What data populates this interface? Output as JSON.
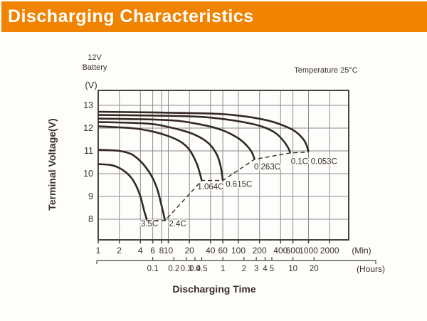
{
  "header": {
    "title": "Discharging Characteristics",
    "bg_color": "#F08300",
    "text_color": "#FFFFFF"
  },
  "chart_notes": {
    "battery_line1": "12V",
    "battery_line2": "Battery",
    "y_unit": "(V)",
    "temperature": "Temperature 25°C"
  },
  "chart_data": {
    "type": "line",
    "title": "Discharging Characteristics",
    "annotation": "Temperature 25°C",
    "x_axis": {
      "label": "Discharging Time",
      "scale": "log",
      "unit_minutes": "(Min)",
      "unit_hours": "(Hours)",
      "minute_ticks": [
        1,
        2,
        4,
        6,
        8,
        10,
        20,
        40,
        60,
        100,
        200,
        400,
        600,
        1000,
        2000
      ],
      "hour_ticks": [
        0.1,
        0.2,
        0.3,
        0.4,
        0.5,
        1,
        2,
        3,
        4,
        5,
        10,
        20
      ],
      "range_minutes": [
        1,
        4000
      ],
      "grid": true
    },
    "y_axis": {
      "label": "Terminal Voltage(V)",
      "ticks": [
        8,
        9,
        10,
        11,
        12,
        13
      ],
      "range": [
        7.1,
        13.65
      ],
      "grid": true
    },
    "series": [
      {
        "name": "3.5C",
        "label_at": [
          4.05,
          7.68
        ],
        "points_min_v": [
          [
            1,
            10.42
          ],
          [
            1.5,
            10.38
          ],
          [
            2,
            10.25
          ],
          [
            2.5,
            10.05
          ],
          [
            3,
            9.8
          ],
          [
            3.5,
            9.45
          ],
          [
            4,
            9.0
          ],
          [
            4.5,
            8.4
          ],
          [
            5,
            7.94
          ]
        ]
      },
      {
        "name": "2.4C",
        "label_at": [
          10.2,
          7.68
        ],
        "points_min_v": [
          [
            1,
            11.05
          ],
          [
            2,
            11.0
          ],
          [
            3,
            10.85
          ],
          [
            4,
            10.55
          ],
          [
            5,
            10.2
          ],
          [
            6,
            9.8
          ],
          [
            7,
            9.3
          ],
          [
            8,
            8.6
          ],
          [
            9,
            7.94
          ]
        ]
      },
      {
        "name": "1.064C",
        "label_at": [
          26,
          9.32
        ],
        "points_min_v": [
          [
            1,
            12.08
          ],
          [
            3,
            12.0
          ],
          [
            6,
            11.85
          ],
          [
            10,
            11.65
          ],
          [
            15,
            11.4
          ],
          [
            20,
            11.05
          ],
          [
            25,
            10.5
          ],
          [
            28,
            10.05
          ],
          [
            30,
            9.7
          ]
        ]
      },
      {
        "name": "0.615C",
        "label_at": [
          66,
          9.42
        ],
        "points_min_v": [
          [
            1,
            12.27
          ],
          [
            5,
            12.2
          ],
          [
            10,
            12.05
          ],
          [
            20,
            11.8
          ],
          [
            30,
            11.55
          ],
          [
            40,
            11.25
          ],
          [
            50,
            10.8
          ],
          [
            56,
            10.3
          ],
          [
            60,
            9.7
          ]
        ]
      },
      {
        "name": "0.263C",
        "label_at": [
          167,
          10.18
        ],
        "points_min_v": [
          [
            1,
            12.42
          ],
          [
            10,
            12.35
          ],
          [
            30,
            12.15
          ],
          [
            60,
            11.9
          ],
          [
            100,
            11.55
          ],
          [
            130,
            11.25
          ],
          [
            155,
            10.95
          ],
          [
            170,
            10.63
          ]
        ]
      },
      {
        "name": "0.1C",
        "label_at": [
          560,
          10.42
        ],
        "points_min_v": [
          [
            1,
            12.58
          ],
          [
            20,
            12.52
          ],
          [
            60,
            12.4
          ],
          [
            150,
            12.2
          ],
          [
            250,
            12.0
          ],
          [
            350,
            11.75
          ],
          [
            450,
            11.4
          ],
          [
            520,
            11.1
          ],
          [
            550,
            10.91
          ]
        ]
      },
      {
        "name": "0.053C",
        "label_at": [
          1080,
          10.42
        ],
        "points_min_v": [
          [
            1,
            12.72
          ],
          [
            30,
            12.65
          ],
          [
            100,
            12.55
          ],
          [
            250,
            12.35
          ],
          [
            450,
            12.1
          ],
          [
            650,
            11.85
          ],
          [
            850,
            11.5
          ],
          [
            950,
            11.2
          ],
          [
            1000,
            10.95
          ]
        ]
      }
    ],
    "cutoff_line": {
      "style": "dashed",
      "description": "locus of discharge end points",
      "points_min_v": [
        [
          5,
          7.94
        ],
        [
          9,
          7.94
        ],
        [
          30,
          9.7
        ],
        [
          60,
          9.7
        ],
        [
          170,
          10.63
        ],
        [
          550,
          10.91
        ],
        [
          1000,
          10.95
        ]
      ]
    },
    "colors": {
      "curve": "#342823",
      "grid": "#8c8c8c",
      "frame": "#4a4340",
      "text": "#3a2f2b"
    }
  }
}
